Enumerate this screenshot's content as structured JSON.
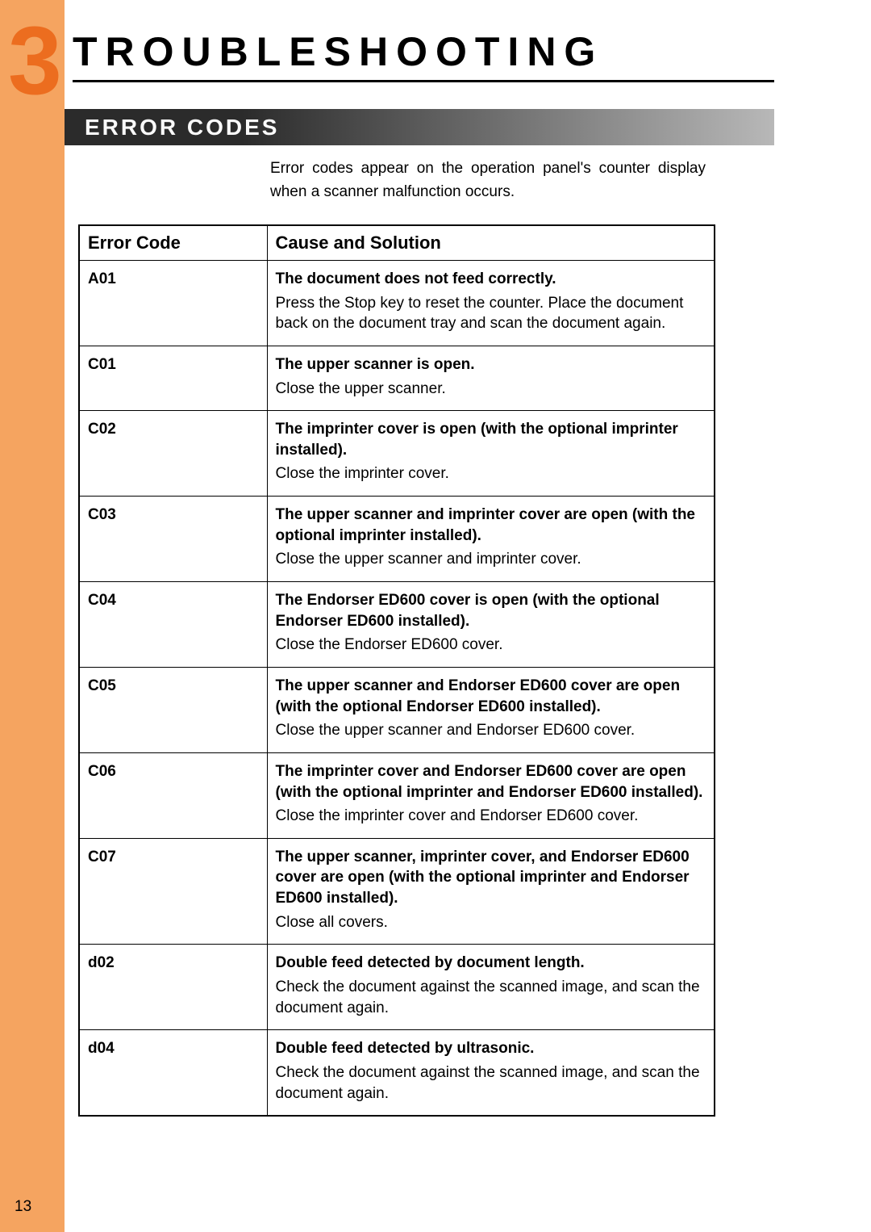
{
  "chapter": {
    "number": "3",
    "title": "TROUBLESHOOTING"
  },
  "section_banner": "ERROR CODES",
  "intro": "Error codes appear on the operation panel's counter display when a scanner malfunction occurs.",
  "table": {
    "headers": {
      "code": "Error Code",
      "cause": "Cause and Solution"
    },
    "rows": [
      {
        "code": "A01",
        "cause": "The document does not feed correctly.",
        "solution": "Press the Stop key to reset the counter. Place the document back on the document tray and scan the document again."
      },
      {
        "code": "C01",
        "cause": "The upper scanner is open.",
        "solution": "Close the upper scanner."
      },
      {
        "code": "C02",
        "cause": "The imprinter cover is open (with the optional imprinter installed).",
        "solution": "Close the imprinter cover."
      },
      {
        "code": "C03",
        "cause": "The upper scanner and imprinter cover are open (with the optional imprinter installed).",
        "solution": "Close the upper scanner and imprinter cover."
      },
      {
        "code": "C04",
        "cause": "The Endorser ED600 cover is open (with the optional Endorser ED600 installed).",
        "solution": "Close the Endorser ED600 cover."
      },
      {
        "code": "C05",
        "cause": "The upper scanner and Endorser ED600 cover are open (with the optional Endorser ED600 installed).",
        "solution": "Close the upper scanner and Endorser ED600 cover."
      },
      {
        "code": "C06",
        "cause": "The imprinter cover and Endorser ED600 cover are open (with the optional imprinter and Endorser ED600 installed).",
        "solution": "Close the imprinter cover and Endorser ED600 cover."
      },
      {
        "code": "C07",
        "cause": "The upper scanner, imprinter cover, and Endorser ED600 cover are open (with the optional imprinter and Endorser ED600 installed).",
        "solution": "Close all covers."
      },
      {
        "code": "d02",
        "cause": "Double feed detected by document length.",
        "solution": "Check the document against the scanned image, and scan the document again."
      },
      {
        "code": "d04",
        "cause": "Double feed detected by ultrasonic.",
        "solution": "Check the document against the scanned image, and scan the document again."
      }
    ]
  },
  "page_number": "13",
  "colors": {
    "sidebar": "#f5a460",
    "chapter_number": "#ec6d1f",
    "banner_dark": "#2b2b2b",
    "banner_light": "#b8b8b8"
  }
}
